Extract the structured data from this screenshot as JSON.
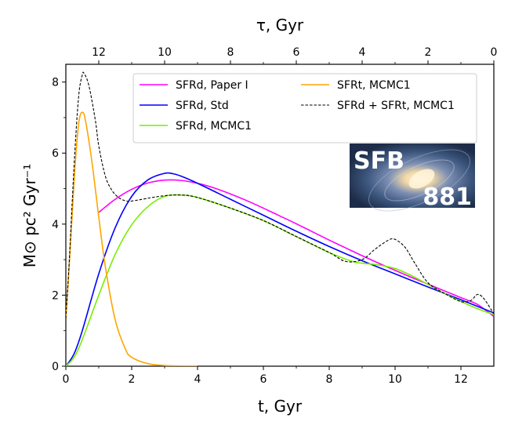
{
  "chart_data": {
    "type": "line",
    "xlabel": "t,  Gyr",
    "ylabel": "M⊙ pc² Gyr⁻¹",
    "top_xlabel": "τ,  Gyr",
    "xlim": [
      0,
      13
    ],
    "ylim": [
      0,
      8.5
    ],
    "x_ticks": [
      0,
      2,
      4,
      6,
      8,
      10,
      12
    ],
    "y_ticks": [
      0,
      2,
      4,
      6,
      8
    ],
    "top_ticks": [
      12,
      10,
      8,
      6,
      4,
      2,
      0
    ],
    "grid": false,
    "legend_position": "top-right",
    "series": [
      {
        "name": "SFRd, Paper I",
        "color": "#ff00ff",
        "style": "solid",
        "points": [
          [
            1.0,
            4.33
          ],
          [
            1.5,
            4.7
          ],
          [
            2.0,
            4.98
          ],
          [
            2.5,
            5.16
          ],
          [
            3.0,
            5.24
          ],
          [
            3.5,
            5.23
          ],
          [
            4.0,
            5.15
          ],
          [
            4.5,
            5.02
          ],
          [
            5.0,
            4.85
          ],
          [
            5.5,
            4.66
          ],
          [
            6.0,
            4.45
          ],
          [
            6.5,
            4.23
          ],
          [
            7.0,
            4.01
          ],
          [
            7.5,
            3.78
          ],
          [
            8.0,
            3.55
          ],
          [
            8.5,
            3.33
          ],
          [
            9.0,
            3.11
          ],
          [
            9.5,
            2.9
          ],
          [
            10.0,
            2.7
          ],
          [
            10.5,
            2.5
          ],
          [
            11.0,
            2.31
          ],
          [
            11.5,
            2.12
          ],
          [
            12.0,
            1.93
          ],
          [
            12.5,
            1.74
          ],
          [
            13.0,
            1.4
          ]
        ]
      },
      {
        "name": "SFRd, Std",
        "color": "#0000ff",
        "style": "solid",
        "points": [
          [
            0.0,
            0.0
          ],
          [
            0.25,
            0.35
          ],
          [
            0.5,
            1.0
          ],
          [
            1.0,
            2.6
          ],
          [
            1.5,
            3.9
          ],
          [
            2.0,
            4.78
          ],
          [
            2.5,
            5.25
          ],
          [
            3.0,
            5.43
          ],
          [
            3.25,
            5.42
          ],
          [
            3.5,
            5.35
          ],
          [
            4.0,
            5.15
          ],
          [
            5.0,
            4.7
          ],
          [
            6.0,
            4.25
          ],
          [
            7.0,
            3.8
          ],
          [
            8.0,
            3.37
          ],
          [
            9.0,
            2.97
          ],
          [
            10.0,
            2.6
          ],
          [
            11.0,
            2.23
          ],
          [
            12.0,
            1.87
          ],
          [
            13.0,
            1.5
          ]
        ]
      },
      {
        "name": "SFRd, MCMC1",
        "color": "#77ee00",
        "style": "solid",
        "points": [
          [
            0.0,
            0.0
          ],
          [
            0.25,
            0.25
          ],
          [
            0.5,
            0.75
          ],
          [
            1.0,
            2.0
          ],
          [
            1.5,
            3.15
          ],
          [
            2.0,
            3.98
          ],
          [
            2.5,
            4.5
          ],
          [
            3.0,
            4.78
          ],
          [
            3.5,
            4.82
          ],
          [
            4.0,
            4.75
          ],
          [
            5.0,
            4.45
          ],
          [
            6.0,
            4.1
          ],
          [
            7.0,
            3.65
          ],
          [
            8.0,
            3.2
          ],
          [
            8.7,
            2.95
          ],
          [
            9.0,
            2.9
          ],
          [
            9.5,
            2.85
          ],
          [
            10.0,
            2.75
          ],
          [
            10.5,
            2.55
          ],
          [
            11.0,
            2.3
          ],
          [
            11.5,
            2.05
          ],
          [
            12.0,
            1.82
          ],
          [
            12.5,
            1.62
          ],
          [
            13.0,
            1.45
          ]
        ]
      },
      {
        "name": "SFRt, MCMC1",
        "color": "#ffa500",
        "style": "solid",
        "points": [
          [
            0.0,
            1.35
          ],
          [
            0.1,
            2.8
          ],
          [
            0.2,
            4.4
          ],
          [
            0.3,
            5.9
          ],
          [
            0.4,
            6.9
          ],
          [
            0.5,
            7.15
          ],
          [
            0.6,
            6.9
          ],
          [
            0.8,
            5.7
          ],
          [
            1.0,
            4.2
          ],
          [
            1.2,
            2.8
          ],
          [
            1.5,
            1.3
          ],
          [
            1.8,
            0.5
          ],
          [
            2.0,
            0.25
          ],
          [
            2.5,
            0.07
          ],
          [
            3.0,
            0.02
          ],
          [
            3.5,
            0.005
          ],
          [
            4.0,
            0.0
          ]
        ]
      },
      {
        "name": "SFRd + SFRt, MCMC1",
        "color": "#000000",
        "style": "dashed",
        "points": [
          [
            0.0,
            1.35
          ],
          [
            0.1,
            2.9
          ],
          [
            0.2,
            4.75
          ],
          [
            0.3,
            6.45
          ],
          [
            0.4,
            7.7
          ],
          [
            0.5,
            8.2
          ],
          [
            0.55,
            8.25
          ],
          [
            0.7,
            7.9
          ],
          [
            0.9,
            6.9
          ],
          [
            1.0,
            6.2
          ],
          [
            1.2,
            5.35
          ],
          [
            1.4,
            4.95
          ],
          [
            1.6,
            4.75
          ],
          [
            1.8,
            4.66
          ],
          [
            2.0,
            4.65
          ],
          [
            2.5,
            4.73
          ],
          [
            3.0,
            4.8
          ],
          [
            3.5,
            4.82
          ],
          [
            4.0,
            4.75
          ],
          [
            5.0,
            4.45
          ],
          [
            6.0,
            4.1
          ],
          [
            7.0,
            3.65
          ],
          [
            8.0,
            3.2
          ],
          [
            8.5,
            2.95
          ],
          [
            9.0,
            3.0
          ],
          [
            9.4,
            3.3
          ],
          [
            9.8,
            3.55
          ],
          [
            10.0,
            3.57
          ],
          [
            10.3,
            3.35
          ],
          [
            10.6,
            2.9
          ],
          [
            11.0,
            2.35
          ],
          [
            11.5,
            2.05
          ],
          [
            12.0,
            1.82
          ],
          [
            12.3,
            1.85
          ],
          [
            12.5,
            2.02
          ],
          [
            12.7,
            1.9
          ],
          [
            13.0,
            1.47
          ]
        ]
      }
    ],
    "legend": [
      {
        "label": "SFRd,  Paper I",
        "color": "#ff00ff",
        "dashed": false,
        "column": 0,
        "row": 0
      },
      {
        "label": "SFRd,  Std",
        "color": "#0000ff",
        "dashed": false,
        "column": 0,
        "row": 1
      },
      {
        "label": "SFRd,  MCMC1",
        "color": "#77ee00",
        "dashed": false,
        "column": 0,
        "row": 2
      },
      {
        "label": "SFRt,  MCMC1",
        "color": "#ffa500",
        "dashed": false,
        "column": 1,
        "row": 0
      },
      {
        "label": "SFRd + SFRt,  MCMC1",
        "color": "#000000",
        "dashed": true,
        "column": 1,
        "row": 1
      }
    ]
  },
  "badge": {
    "line1": "SFB",
    "line2": "881"
  }
}
